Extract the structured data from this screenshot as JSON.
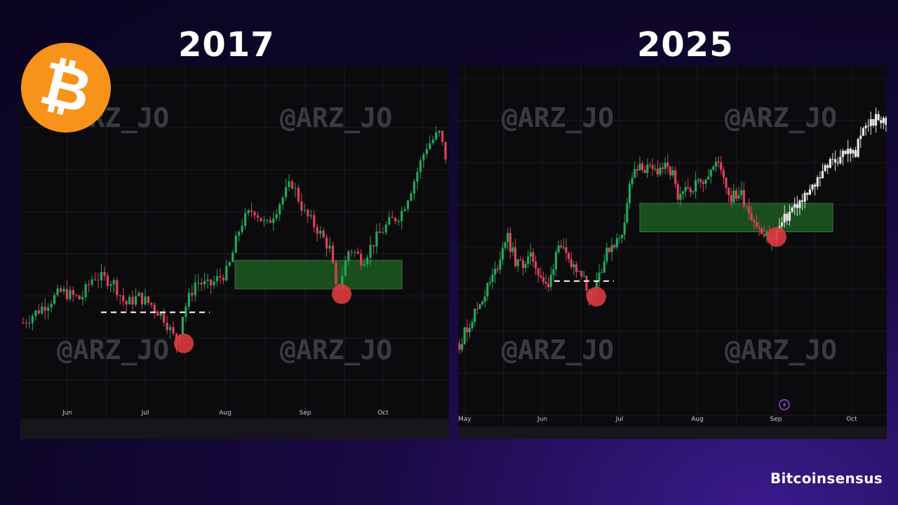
{
  "page": {
    "logo_symbol": "₿",
    "brand": "Bitcoinsensus",
    "watermark": "@ARZ_JO",
    "accent_colors": {
      "up": "#26a65b",
      "down": "#e0405a",
      "projection": "#e6e6e6",
      "zone": "#1f5a22",
      "marker": "#d83a3f",
      "logo": "#f7931a"
    }
  },
  "chart_data": [
    {
      "type": "candlestick",
      "title": "2017",
      "x_ticks": [
        "Jun",
        "Jul",
        "Aug",
        "Sep",
        "Oct"
      ],
      "trend_path": [
        [
          0,
          0.2
        ],
        [
          6,
          0.32
        ],
        [
          9,
          0.29
        ],
        [
          11,
          0.38
        ],
        [
          14,
          0.36
        ],
        [
          16,
          0.27
        ],
        [
          18,
          0.3
        ],
        [
          20,
          0.27
        ],
        [
          22,
          0.22
        ],
        [
          24,
          0.12
        ],
        [
          25,
          0.24
        ],
        [
          27,
          0.36
        ],
        [
          29,
          0.34
        ],
        [
          32,
          0.4
        ],
        [
          34,
          0.58
        ],
        [
          36,
          0.64
        ],
        [
          38,
          0.57
        ],
        [
          40,
          0.66
        ],
        [
          42,
          0.74
        ],
        [
          44,
          0.62
        ],
        [
          46,
          0.56
        ],
        [
          48,
          0.48
        ],
        [
          49,
          0.31
        ],
        [
          51,
          0.49
        ],
        [
          53,
          0.44
        ],
        [
          55,
          0.52
        ],
        [
          57,
          0.58
        ],
        [
          59,
          0.62
        ],
        [
          61,
          0.74
        ],
        [
          63,
          0.88
        ],
        [
          65,
          0.93
        ],
        [
          66,
          0.84
        ]
      ],
      "dashed_level": 0.24,
      "zone": {
        "from": 0.33,
        "to": 0.44
      },
      "markers": [
        0.12,
        0.31
      ],
      "projection_from": null
    },
    {
      "type": "candlestick",
      "title": "2025",
      "x_ticks": [
        "May",
        "Jun",
        "Jul",
        "Aug",
        "Sep",
        "Oct"
      ],
      "trend_path": [
        [
          0,
          0.12
        ],
        [
          4,
          0.28
        ],
        [
          7,
          0.4
        ],
        [
          9,
          0.54
        ],
        [
          11,
          0.42
        ],
        [
          14,
          0.45
        ],
        [
          17,
          0.32
        ],
        [
          19,
          0.52
        ],
        [
          21,
          0.42
        ],
        [
          23,
          0.42
        ],
        [
          25,
          0.3
        ],
        [
          27,
          0.4
        ],
        [
          29,
          0.5
        ],
        [
          31,
          0.52
        ],
        [
          33,
          0.76
        ],
        [
          35,
          0.8
        ],
        [
          37,
          0.78
        ],
        [
          39,
          0.8
        ],
        [
          41,
          0.77
        ],
        [
          42,
          0.66
        ],
        [
          44,
          0.72
        ],
        [
          46,
          0.74
        ],
        [
          48,
          0.78
        ],
        [
          50,
          0.82
        ],
        [
          52,
          0.68
        ],
        [
          54,
          0.7
        ],
        [
          56,
          0.62
        ],
        [
          58,
          0.54
        ],
        [
          60,
          0.52
        ],
        [
          62,
          0.58
        ],
        [
          64,
          0.64
        ],
        [
          66,
          0.67
        ],
        [
          68,
          0.72
        ],
        [
          70,
          0.8
        ],
        [
          72,
          0.82
        ],
        [
          74,
          0.86
        ],
        [
          76,
          0.85
        ],
        [
          78,
          0.96
        ],
        [
          80,
          0.98
        ],
        [
          82,
          0.97
        ]
      ],
      "dashed_level": 0.36,
      "zone": {
        "from": 0.55,
        "to": 0.66
      },
      "markers": [
        0.3,
        0.53
      ],
      "projection_from": 61,
      "extra_icon": "lightning-icon"
    }
  ]
}
